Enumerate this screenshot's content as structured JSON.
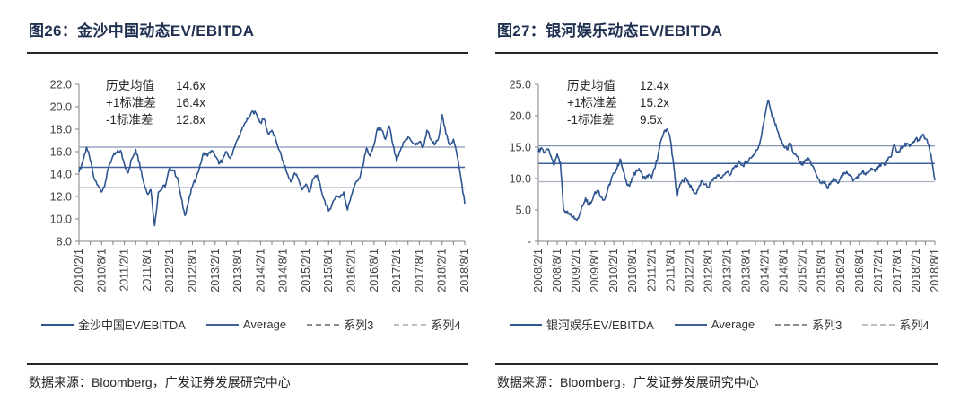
{
  "page": {
    "background": "#ffffff"
  },
  "colors": {
    "title": "#1f3050",
    "rule": "#262626",
    "axis": "#808080",
    "tick_label": "#3f3f3f",
    "annotation_text": "#262626",
    "series": "#2e5590",
    "average": "#41619b",
    "plus_1sd": "#8494b4",
    "minus_1sd": "#a9b2c4",
    "legend_dash_gray": "#8c8c8c",
    "legend_dash_light": "#bfbfbf"
  },
  "charts": [
    {
      "title": "图26：金沙中国动态EV/EBITDA",
      "annotation": {
        "rows": [
          [
            "历史均值",
            "14.6x"
          ],
          [
            "+1标准差",
            "16.4x"
          ],
          [
            "-1标准差",
            "12.8x"
          ]
        ]
      },
      "legend": [
        {
          "label": "金沙中国EV/EBITDA",
          "color": "#2e5590",
          "dash": false
        },
        {
          "label": "Average",
          "color": "#41619b",
          "dash": false
        },
        {
          "label": "系列3",
          "color": "#8c8c8c",
          "dash": true
        },
        {
          "label": "系列4",
          "color": "#bfbfbf",
          "dash": true
        }
      ],
      "source": "数据来源：Bloomberg，广发证券发展研究中心"
    },
    {
      "title": "图27：银河娱乐动态EV/EBITDA",
      "annotation": {
        "rows": [
          [
            "历史均值",
            "12.4x"
          ],
          [
            "+1标准差",
            "15.2x"
          ],
          [
            "-1标准差",
            "9.5x"
          ]
        ]
      },
      "legend": [
        {
          "label": "银河娱乐EV/EBITDA",
          "color": "#2e5590",
          "dash": false
        },
        {
          "label": "Average",
          "color": "#41619b",
          "dash": false
        },
        {
          "label": "系列3",
          "color": "#8c8c8c",
          "dash": true
        },
        {
          "label": "系列4",
          "color": "#bfbfbf",
          "dash": true
        }
      ],
      "source": "数据来源：Bloomberg，广发证券发展研究中心"
    }
  ],
  "chart_data": [
    {
      "type": "line",
      "title": "金沙中国动态EV/EBITDA",
      "x_unit": "month",
      "x_start": "2010/2/1",
      "x_end": "2018/8/1",
      "x_tick_labels": [
        "2010/2/1",
        "2010/8/1",
        "2011/2/1",
        "2011/8/1",
        "2012/2/1",
        "2012/8/1",
        "2013/2/1",
        "2013/8/1",
        "2014/2/1",
        "2014/8/1",
        "2015/2/1",
        "2015/8/1",
        "2016/2/1",
        "2016/8/1",
        "2017/2/1",
        "2017/8/1",
        "2018/2/1",
        "2018/8/1"
      ],
      "ylim": [
        8,
        22
      ],
      "yticks": [
        8,
        10,
        12,
        14,
        16,
        18,
        20,
        22
      ],
      "ytick_labels": [
        "8.0",
        "10.0",
        "12.0",
        "14.0",
        "16.0",
        "18.0",
        "20.0",
        "22.0"
      ],
      "grid": false,
      "legend_position": "bottom",
      "series": [
        {
          "name": "金沙中国EV/EBITDA",
          "kind": "monthly",
          "values": [
            14.2,
            15.1,
            16.4,
            15.2,
            13.6,
            13.0,
            12.4,
            13.3,
            14.8,
            15.6,
            15.9,
            16.1,
            14.9,
            14.1,
            15.4,
            16.2,
            15.0,
            13.4,
            12.3,
            12.6,
            9.4,
            12.4,
            12.7,
            13.1,
            14.6,
            14.3,
            13.7,
            11.9,
            10.3,
            11.6,
            12.9,
            13.6,
            14.8,
            15.9,
            15.6,
            16.1,
            15.6,
            14.9,
            15.3,
            16.0,
            15.4,
            16.3,
            17.1,
            17.9,
            18.6,
            19.1,
            19.6,
            19.3,
            18.6,
            18.9,
            17.6,
            17.9,
            17.1,
            16.1,
            15.1,
            14.1,
            13.3,
            14.1,
            13.6,
            12.6,
            13.1,
            12.4,
            13.6,
            13.9,
            12.6,
            11.6,
            10.7,
            11.4,
            12.1,
            11.9,
            12.4,
            10.8,
            12.1,
            13.1,
            13.6,
            14.6,
            16.3,
            15.6,
            16.6,
            18.1,
            17.9,
            17.1,
            18.3,
            16.6,
            15.1,
            16.1,
            16.9,
            17.3,
            16.9,
            16.6,
            16.9,
            16.4,
            17.9,
            17.1,
            16.6,
            17.1,
            19.3,
            17.6,
            16.6,
            17.1,
            15.6,
            13.6,
            11.4
          ]
        },
        {
          "name": "Average",
          "kind": "constant",
          "value": 14.6
        },
        {
          "name": "系列3",
          "kind": "constant",
          "value": 16.4
        },
        {
          "name": "系列4",
          "kind": "constant",
          "value": 12.8
        }
      ]
    },
    {
      "type": "line",
      "title": "银河娱乐动态EV/EBITDA",
      "x_unit": "month",
      "x_start": "2008/2/1",
      "x_end": "2018/8/1",
      "x_tick_labels": [
        "2008/2/1",
        "2008/8/1",
        "2009/2/1",
        "2009/8/1",
        "2010/2/1",
        "2010/8/1",
        "2011/2/1",
        "2011/8/1",
        "2012/2/1",
        "2012/8/1",
        "2013/2/1",
        "2013/8/1",
        "2014/2/1",
        "2014/8/1",
        "2015/2/1",
        "2015/8/1",
        "2016/2/1",
        "2016/8/1",
        "2017/2/1",
        "2017/8/1",
        "2018/2/1",
        "2018/8/1"
      ],
      "ylim": [
        0,
        25
      ],
      "yticks": [
        0,
        5,
        10,
        15,
        20,
        25
      ],
      "ytick_labels": [
        "-",
        "5.0",
        "10.0",
        "15.0",
        "20.0",
        "25.0"
      ],
      "grid": false,
      "legend_position": "bottom",
      "series": [
        {
          "name": "银河娱乐EV/EBITDA",
          "kind": "monthly",
          "values": [
            14.3,
            14.9,
            14.1,
            14.6,
            13.6,
            12.1,
            13.9,
            12.6,
            5.1,
            4.6,
            4.2,
            3.9,
            3.5,
            4.1,
            5.6,
            6.9,
            5.9,
            6.4,
            7.9,
            8.1,
            7.1,
            6.6,
            8.1,
            9.6,
            10.9,
            11.6,
            13.1,
            11.1,
            9.4,
            8.8,
            10.1,
            11.1,
            11.6,
            10.6,
            9.9,
            10.6,
            10.1,
            11.6,
            13.6,
            16.1,
            17.6,
            17.9,
            16.1,
            12.1,
            7.1,
            9.1,
            9.6,
            10.1,
            9.1,
            8.1,
            7.6,
            8.6,
            9.6,
            9.1,
            8.6,
            9.6,
            10.1,
            10.6,
            10.1,
            10.6,
            11.1,
            10.6,
            11.6,
            12.1,
            12.6,
            12.1,
            12.6,
            13.1,
            13.6,
            14.1,
            15.1,
            17.1,
            20.1,
            22.5,
            20.6,
            19.1,
            17.6,
            16.1,
            15.1,
            14.6,
            15.6,
            14.1,
            13.6,
            12.6,
            12.1,
            12.9,
            13.1,
            12.1,
            11.1,
            9.9,
            9.2,
            9.6,
            8.4,
            9.4,
            9.9,
            9.4,
            10.1,
            10.6,
            11.1,
            10.6,
            9.6,
            10.1,
            10.6,
            11.1,
            10.6,
            11.1,
            11.6,
            11.1,
            11.9,
            12.4,
            12.1,
            12.9,
            13.4,
            15.4,
            14.1,
            14.6,
            15.1,
            15.6,
            15.1,
            15.6,
            16.4,
            16.1,
            16.9,
            16.4,
            15.4,
            12.9,
            9.8
          ]
        },
        {
          "name": "Average",
          "kind": "constant",
          "value": 12.4
        },
        {
          "name": "系列3",
          "kind": "constant",
          "value": 15.2
        },
        {
          "name": "系列4",
          "kind": "constant",
          "value": 9.5
        }
      ]
    }
  ]
}
